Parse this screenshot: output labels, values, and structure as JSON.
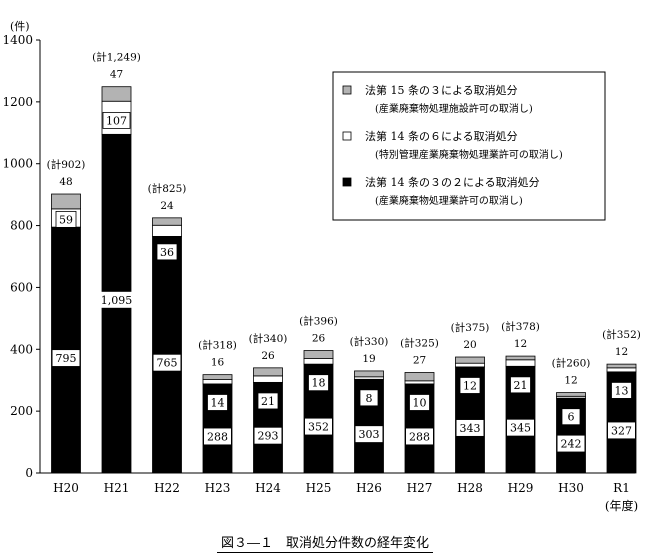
{
  "chart_data": {
    "type": "bar",
    "stacked": true,
    "title": "図３―１　取消処分件数の経年変化",
    "ylabel": "(件)",
    "xlabel": "(年度)",
    "ylim": [
      0,
      1400
    ],
    "yticks": [
      0,
      200,
      400,
      600,
      800,
      1000,
      1200,
      1400
    ],
    "grid": false,
    "legend_position": "top-right",
    "categories": [
      "H20",
      "H21",
      "H22",
      "H23",
      "H24",
      "H25",
      "H26",
      "H27",
      "H28",
      "H29",
      "H30",
      "R1"
    ],
    "totals_labels": [
      "(計902)",
      "(計1,249)",
      "(計825)",
      "(計318)",
      "(計340)",
      "(計396)",
      "(計330)",
      "(計325)",
      "(計375)",
      "(計378)",
      "(計260)",
      "(計352)"
    ],
    "series": [
      {
        "key": "s3",
        "name": "法第 14 条の３の２による取消処分",
        "sub": "(産業廃棄物処理業許可の取消し)",
        "color": "#000000",
        "values": [
          795,
          1095,
          765,
          288,
          293,
          352,
          303,
          288,
          343,
          345,
          242,
          327
        ],
        "value_labels": [
          "795",
          "1,095",
          "765",
          "288",
          "293",
          "352",
          "303",
          "288",
          "343",
          "345",
          "242",
          "327"
        ]
      },
      {
        "key": "s2",
        "name": "法第 14 条の６による取消処分",
        "sub": "(特別管理産業廃棄物処理業許可の取消し)",
        "color": "#ffffff",
        "values": [
          59,
          107,
          36,
          14,
          21,
          18,
          8,
          10,
          12,
          21,
          6,
          13
        ],
        "value_labels": [
          "59",
          "107",
          "36",
          "14",
          "21",
          "18",
          "8",
          "10",
          "12",
          "21",
          "6",
          "13"
        ]
      },
      {
        "key": "s1",
        "name": "法第 15 条の３による取消処分",
        "sub": "(産業廃棄物処理施設許可の取消し)",
        "color": "#b3b3b3",
        "values": [
          48,
          47,
          24,
          16,
          26,
          26,
          19,
          27,
          20,
          12,
          12,
          12
        ],
        "value_labels": [
          "48",
          "47",
          "24",
          "16",
          "26",
          "26",
          "19",
          "27",
          "20",
          "12",
          "12",
          "12"
        ]
      }
    ],
    "legend_order": [
      "s1",
      "s2",
      "s3"
    ]
  }
}
